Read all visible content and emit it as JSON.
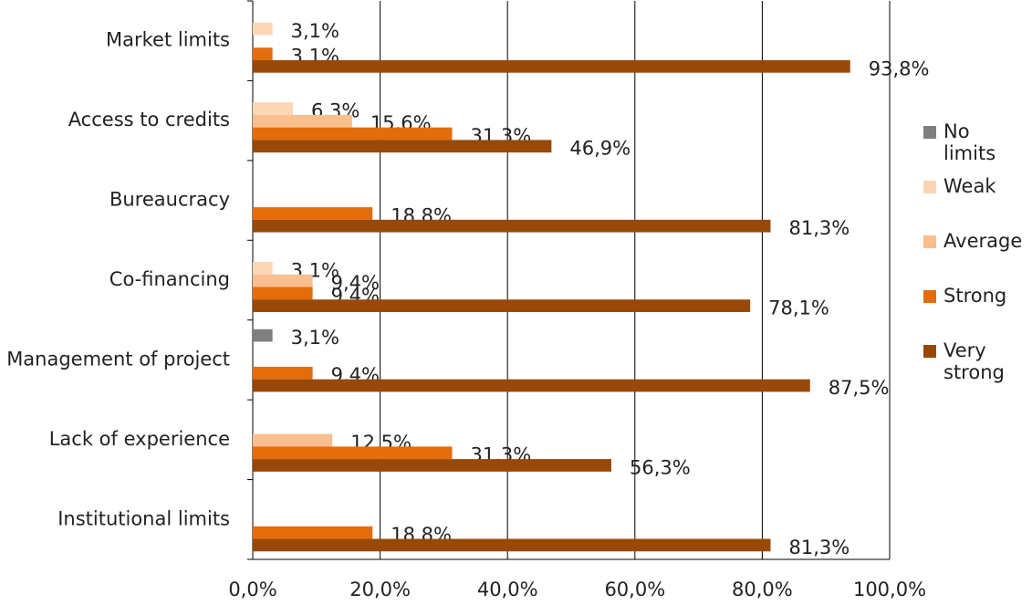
{
  "chart_data": {
    "type": "bar",
    "orientation": "horizontal",
    "categories": [
      "Market limits",
      "Access to credits",
      "Bureaucracy",
      "Co-financing",
      "Management of project",
      "Lack of experience",
      "Institutional limits"
    ],
    "series": [
      {
        "name": "No limits",
        "color": "#7f7f7f",
        "values": [
          null,
          null,
          null,
          null,
          3.1,
          null,
          null
        ],
        "value_labels": [
          null,
          null,
          null,
          null,
          "3,1%",
          null,
          null
        ]
      },
      {
        "name": "Weak",
        "color": "#fcd5b5",
        "values": [
          3.1,
          6.3,
          null,
          3.1,
          null,
          null,
          null
        ],
        "value_labels": [
          "3,1%",
          "6,3%",
          null,
          "3,1%",
          null,
          null,
          null
        ]
      },
      {
        "name": "Average",
        "color": "#f9bf8f",
        "values": [
          null,
          15.6,
          null,
          9.4,
          null,
          12.5,
          null
        ],
        "value_labels": [
          null,
          "15,6%",
          null,
          "9,4%",
          null,
          "12,5%",
          null
        ]
      },
      {
        "name": "Strong",
        "color": "#e46c0a",
        "values": [
          3.1,
          31.3,
          18.8,
          9.4,
          9.4,
          31.3,
          18.8
        ],
        "value_labels": [
          "3,1%",
          "31,3%",
          "18,8%",
          "9,4%",
          "9,4%",
          "31,3%",
          "18,8%"
        ]
      },
      {
        "name": "Very strong",
        "color": "#984807",
        "values": [
          93.8,
          46.9,
          81.3,
          78.1,
          87.5,
          56.3,
          81.3
        ],
        "value_labels": [
          "93,8%",
          "46,9%",
          "81,3%",
          "78,1%",
          "87,5%",
          "56,3%",
          "81,3%"
        ]
      }
    ],
    "xlim": [
      0,
      100
    ],
    "xticks": [
      {
        "value": 0,
        "label": "0,0%"
      },
      {
        "value": 20,
        "label": "20,0%"
      },
      {
        "value": 40,
        "label": "40,0%"
      },
      {
        "value": 60,
        "label": "60,0%"
      },
      {
        "value": 80,
        "label": "80,0%"
      },
      {
        "value": 100,
        "label": "100,0%"
      }
    ],
    "grid": true,
    "legend": "right"
  }
}
